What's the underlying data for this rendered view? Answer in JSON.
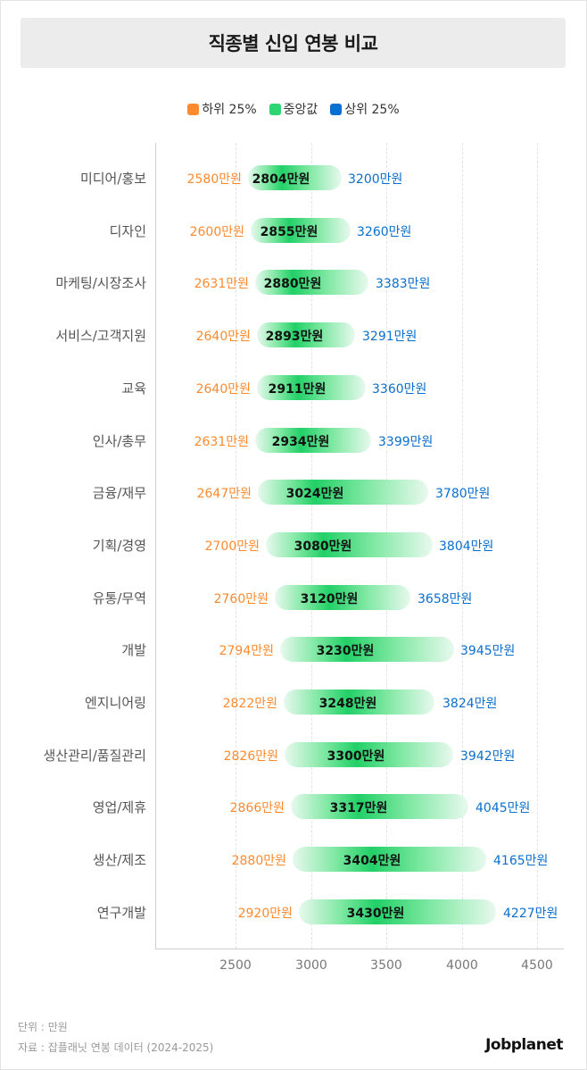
{
  "title": "직종별 신입 연봉 비교",
  "legend": [
    {
      "label": "하위 25%",
      "color": "#ff8a2e"
    },
    {
      "label": "중앙값",
      "color": "#2ed573"
    },
    {
      "label": "상위 25%",
      "color": "#0a6fcf"
    }
  ],
  "unit_suffix": "만원",
  "footer": {
    "unit": "단위 : 만원",
    "source": "자료 : 잡플래닛 연봉 데이터 (2024-2025)",
    "brand": "Jobplanet"
  },
  "chart_data": {
    "type": "bar",
    "subtype": "range-bar",
    "title": "직종별 신입 연봉 비교",
    "xlabel": "",
    "ylabel": "",
    "unit": "만원",
    "xlim": [
      1960,
      4670
    ],
    "xticks": [
      2500,
      3000,
      3500,
      4000,
      4500
    ],
    "grid": true,
    "legend_position": "top",
    "categories": [
      "미디어/홍보",
      "디자인",
      "마케팅/시장조사",
      "서비스/고객지원",
      "교육",
      "인사/총무",
      "금융/재무",
      "기획/경영",
      "유통/무역",
      "개발",
      "엔지니어링",
      "생산관리/품질관리",
      "영업/제휴",
      "생산/제조",
      "연구개발"
    ],
    "series": [
      {
        "name": "하위 25%",
        "values": [
          2580,
          2600,
          2631,
          2640,
          2640,
          2631,
          2647,
          2700,
          2760,
          2794,
          2822,
          2826,
          2866,
          2880,
          2920
        ]
      },
      {
        "name": "중앙값",
        "values": [
          2804,
          2855,
          2880,
          2893,
          2911,
          2934,
          3024,
          3080,
          3120,
          3230,
          3248,
          3300,
          3317,
          3404,
          3430
        ]
      },
      {
        "name": "상위 25%",
        "values": [
          3200,
          3260,
          3383,
          3291,
          3360,
          3399,
          3780,
          3804,
          3658,
          3945,
          3824,
          3942,
          4045,
          4165,
          4227
        ]
      }
    ],
    "rows": [
      {
        "category": "미디어/홍보",
        "low": "2580만원",
        "median": "2804만원",
        "high": "3200만원"
      },
      {
        "category": "디자인",
        "low": "2600만원",
        "median": "2855만원",
        "high": "3260만원"
      },
      {
        "category": "마케팅/시장조사",
        "low": "2631만원",
        "median": "2880만원",
        "high": "3383만원"
      },
      {
        "category": "서비스/고객지원",
        "low": "2640만원",
        "median": "2893만원",
        "high": "3291만원"
      },
      {
        "category": "교육",
        "low": "2640만원",
        "median": "2911만원",
        "high": "3360만원"
      },
      {
        "category": "인사/총무",
        "low": "2631만원",
        "median": "2934만원",
        "high": "3399만원"
      },
      {
        "category": "금융/재무",
        "low": "2647만원",
        "median": "3024만원",
        "high": "3780만원"
      },
      {
        "category": "기획/경영",
        "low": "2700만원",
        "median": "3080만원",
        "high": "3804만원"
      },
      {
        "category": "유통/무역",
        "low": "2760만원",
        "median": "3120만원",
        "high": "3658만원"
      },
      {
        "category": "개발",
        "low": "2794만원",
        "median": "3230만원",
        "high": "3945만원"
      },
      {
        "category": "엔지니어링",
        "low": "2822만원",
        "median": "3248만원",
        "high": "3824만원"
      },
      {
        "category": "생산관리/품질관리",
        "low": "2826만원",
        "median": "3300만원",
        "high": "3942만원"
      },
      {
        "category": "영업/제휴",
        "low": "2866만원",
        "median": "3317만원",
        "high": "4045만원"
      },
      {
        "category": "생산/제조",
        "low": "2880만원",
        "median": "3404만원",
        "high": "4165만원"
      },
      {
        "category": "연구개발",
        "low": "2920만원",
        "median": "3430만원",
        "high": "4227만원"
      }
    ]
  }
}
